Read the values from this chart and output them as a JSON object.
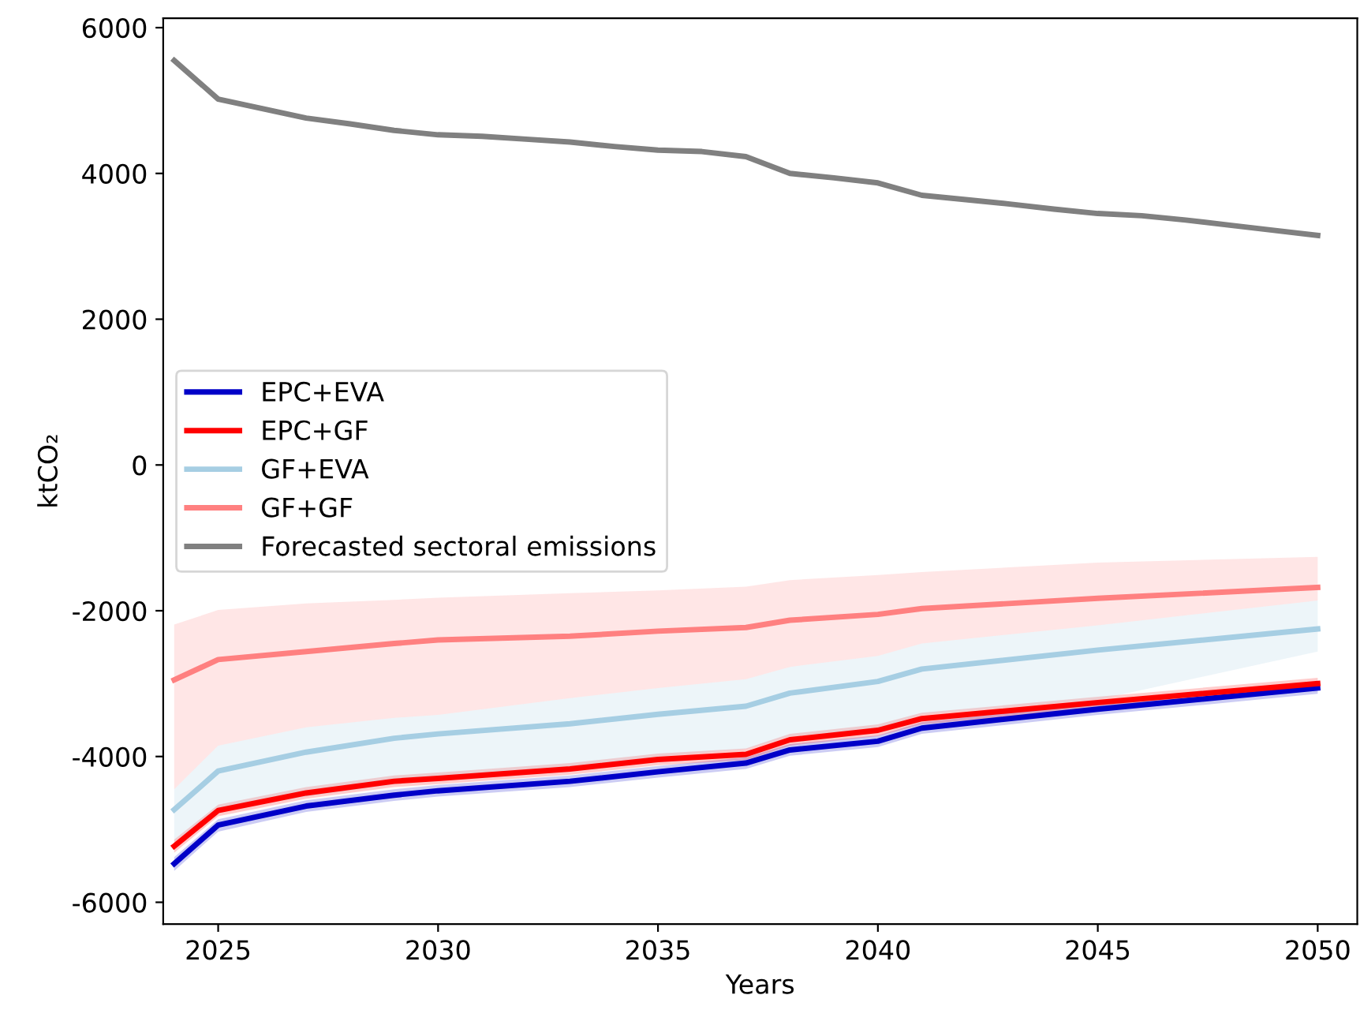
{
  "chart_data": {
    "type": "line",
    "xlabel": "Years",
    "ylabel": "ktCO₂",
    "x": [
      2024,
      2025,
      2027,
      2029,
      2030,
      2033,
      2035,
      2037,
      2038,
      2040,
      2041,
      2045,
      2050
    ],
    "series": [
      {
        "name": "EPC+EVA",
        "color": "#0000c8",
        "values": [
          -5470,
          -4940,
          -4680,
          -4530,
          -4470,
          -4340,
          -4210,
          -4090,
          -3910,
          -3790,
          -3610,
          -3350,
          -3060
        ],
        "lower": [
          -5570,
          -5030,
          -4760,
          -4610,
          -4550,
          -4420,
          -4290,
          -4170,
          -3990,
          -3870,
          -3690,
          -3430,
          -3140
        ],
        "upper": [
          -5380,
          -4860,
          -4600,
          -4450,
          -4390,
          -4260,
          -4130,
          -4010,
          -3830,
          -3710,
          -3530,
          -3270,
          -2980
        ]
      },
      {
        "name": "EPC+GF",
        "color": "#ff0000",
        "values": [
          -5230,
          -4740,
          -4500,
          -4340,
          -4300,
          -4170,
          -4040,
          -3970,
          -3770,
          -3640,
          -3480,
          -3260,
          -3000
        ],
        "lower": [
          -5320,
          -4820,
          -4580,
          -4420,
          -4380,
          -4250,
          -4120,
          -4050,
          -3850,
          -3720,
          -3560,
          -3340,
          -3080
        ],
        "upper": [
          -5140,
          -4660,
          -4420,
          -4260,
          -4220,
          -4090,
          -3960,
          -3890,
          -3690,
          -3560,
          -3400,
          -3180,
          -2920
        ]
      },
      {
        "name": "GF+EVA",
        "color": "#a6cee3",
        "values": [
          -4730,
          -4200,
          -3940,
          -3750,
          -3690,
          -3550,
          -3420,
          -3310,
          -3130,
          -2970,
          -2800,
          -2540,
          -2250
        ],
        "lower": [
          -5170,
          -4750,
          -4550,
          -4380,
          -4290,
          -4150,
          -4000,
          -3900,
          -3720,
          -3620,
          -3420,
          -3220,
          -2560
        ],
        "upper": [
          -4450,
          -3850,
          -3600,
          -3470,
          -3430,
          -3200,
          -3060,
          -2940,
          -2770,
          -2620,
          -2450,
          -2200,
          -1860
        ]
      },
      {
        "name": "GF+GF",
        "color": "#ff8080",
        "values": [
          -2950,
          -2670,
          -2560,
          -2450,
          -2400,
          -2350,
          -2280,
          -2230,
          -2130,
          -2050,
          -1970,
          -1830,
          -1680
        ],
        "lower": [
          -4450,
          -3850,
          -3600,
          -3470,
          -3430,
          -3200,
          -3060,
          -2940,
          -2770,
          -2620,
          -2450,
          -2200,
          -1860
        ],
        "upper": [
          -2190,
          -1990,
          -1900,
          -1850,
          -1820,
          -1760,
          -1720,
          -1670,
          -1580,
          -1510,
          -1470,
          -1340,
          -1260
        ]
      },
      {
        "name": "Forecasted sectoral emissions",
        "color": "#808080",
        "x": [
          2024,
          2025,
          2026,
          2027,
          2028,
          2029,
          2030,
          2031,
          2032,
          2033,
          2034,
          2035,
          2036,
          2037,
          2038,
          2039,
          2040,
          2041,
          2042,
          2043,
          2044,
          2045,
          2046,
          2047,
          2048,
          2049,
          2050
        ],
        "values": [
          5550,
          5020,
          4890,
          4760,
          4680,
          4590,
          4530,
          4510,
          4470,
          4430,
          4370,
          4320,
          4300,
          4230,
          4000,
          3940,
          3870,
          3700,
          3640,
          3580,
          3510,
          3450,
          3420,
          3360,
          3290,
          3220,
          3150
        ]
      }
    ],
    "xlim": [
      2023.75,
      2050.9
    ],
    "ylim": [
      -6300,
      6130
    ],
    "xticks": [
      2025,
      2030,
      2035,
      2040,
      2045,
      2050
    ],
    "yticks": [
      -6000,
      -4000,
      -2000,
      0,
      2000,
      4000,
      6000
    ],
    "legend": "center left",
    "grid": false
  }
}
